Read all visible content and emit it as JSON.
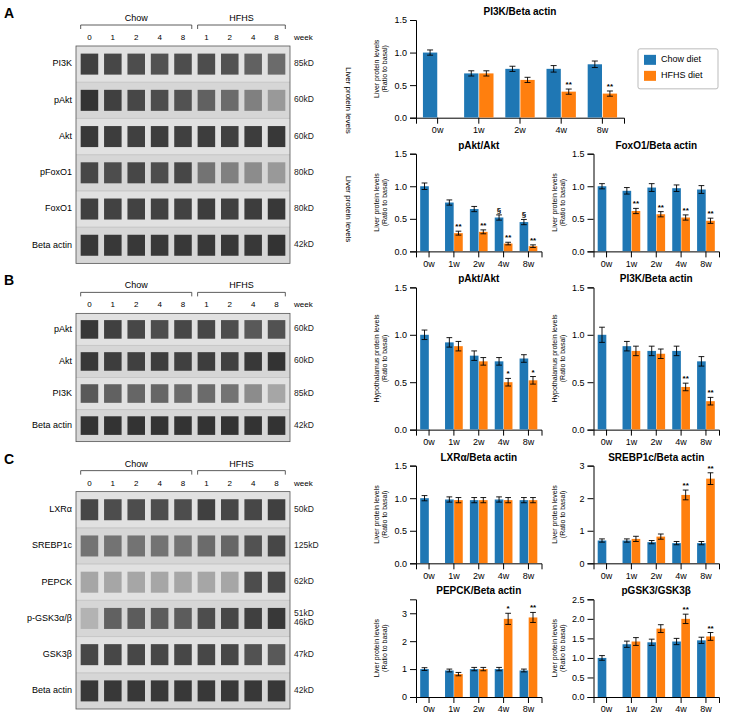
{
  "chart_data": [
    {
      "type": "heatmap",
      "title": "A",
      "categories": [
        "0",
        "1",
        "2",
        "4",
        "8",
        "1",
        "2",
        "4",
        "8"
      ],
      "xlabel": "week",
      "groups": [
        "Chow",
        "Chow",
        "Chow",
        "Chow",
        "Chow",
        "HFHS",
        "HFHS",
        "HFHS",
        "HFHS"
      ],
      "rows": [
        {
          "name": "PI3K",
          "kd": "85kD",
          "values": [
            0.25,
            0.28,
            0.3,
            0.32,
            0.3,
            0.3,
            0.32,
            0.38,
            0.42
          ]
        },
        {
          "name": "pAkt",
          "kd": "60kD",
          "values": [
            0.2,
            0.25,
            0.28,
            0.3,
            0.32,
            0.38,
            0.42,
            0.5,
            0.6
          ]
        },
        {
          "name": "Akt",
          "kd": "60kD",
          "values": [
            0.22,
            0.24,
            0.25,
            0.24,
            0.25,
            0.24,
            0.25,
            0.24,
            0.22
          ]
        },
        {
          "name": "pFoxO1",
          "kd": "80kD",
          "values": [
            0.28,
            0.3,
            0.28,
            0.3,
            0.28,
            0.45,
            0.5,
            0.55,
            0.6
          ]
        },
        {
          "name": "FoxO1",
          "kd": "80kD",
          "values": [
            0.25,
            0.26,
            0.26,
            0.26,
            0.26,
            0.24,
            0.25,
            0.24,
            0.22
          ]
        },
        {
          "name": "Beta actin",
          "kd": "42kD",
          "values": [
            0.22,
            0.22,
            0.22,
            0.22,
            0.22,
            0.22,
            0.22,
            0.22,
            0.2
          ]
        }
      ],
      "annotations": [
        "Liver protein levels",
        "Liver protein levels"
      ]
    },
    {
      "type": "bar",
      "title": "PI3K/Beta actin",
      "categories": [
        "0w",
        "1w",
        "2w",
        "4w",
        "8w"
      ],
      "ylabel": "Liver protein levels\n(Ratio to basal)",
      "ylim": [
        0,
        1.5
      ],
      "yticks": [
        {
          "value": 0,
          "label": "0.0"
        },
        0.5,
        {
          "value": 1,
          "label": "1.0"
        },
        1.5
      ],
      "legend": "right",
      "series": [
        {
          "name": "Chow diet",
          "values": [
            1.0,
            0.68,
            0.75,
            0.75,
            0.82
          ],
          "errors": [
            0.04,
            0.04,
            0.04,
            0.05,
            0.05
          ]
        },
        {
          "name": "HFHS diet",
          "values": [
            null,
            0.68,
            0.58,
            0.4,
            0.37
          ],
          "errors": [
            null,
            0.04,
            0.04,
            0.04,
            0.04
          ],
          "annotations": [
            null,
            null,
            null,
            "**",
            "**"
          ]
        }
      ]
    },
    {
      "type": "bar",
      "title": "pAkt/Akt",
      "categories": [
        "0w",
        "1w",
        "2w",
        "4w",
        "8w"
      ],
      "ylabel": "Liver protein levels\n(Ratio to basal)",
      "ylim": [
        0,
        1.5
      ],
      "yticks": [
        {
          "value": 0,
          "label": "0.0"
        },
        0.5,
        {
          "value": 1,
          "label": "1.0"
        },
        1.5
      ],
      "series": [
        {
          "values": [
            1.0,
            0.75,
            0.65,
            0.52,
            0.45
          ],
          "errors": [
            0.05,
            0.04,
            0.04,
            0.04,
            0.04
          ],
          "annotations": [
            null,
            null,
            null,
            "§",
            "§"
          ]
        },
        {
          "values": [
            null,
            0.28,
            0.3,
            0.12,
            0.08
          ],
          "errors": [
            null,
            0.03,
            0.03,
            0.02,
            0.02
          ],
          "annotations": [
            null,
            "**",
            "**",
            "**",
            "**"
          ]
        }
      ]
    },
    {
      "type": "bar",
      "title": "FoxO1/Beta actin",
      "categories": [
        "0w",
        "1w",
        "2w",
        "4w",
        "8w"
      ],
      "ylabel": "Liver protein levels\n(Ratio to basal)",
      "ylim": [
        0,
        1.5
      ],
      "yticks": [
        {
          "value": 0,
          "label": "0.0"
        },
        0.5,
        {
          "value": 1,
          "label": "1.0"
        },
        1.5
      ],
      "series": [
        {
          "values": [
            1.0,
            0.93,
            0.98,
            0.97,
            0.95
          ],
          "errors": [
            0.04,
            0.05,
            0.06,
            0.05,
            0.06
          ]
        },
        {
          "values": [
            null,
            0.62,
            0.57,
            0.52,
            0.47
          ],
          "errors": [
            null,
            0.04,
            0.04,
            0.04,
            0.04
          ],
          "annotations": [
            null,
            "**",
            "**",
            "**",
            "**"
          ]
        }
      ]
    },
    {
      "type": "heatmap",
      "title": "B",
      "categories": [
        "0",
        "1",
        "2",
        "4",
        "8",
        "1",
        "2",
        "4",
        "8"
      ],
      "xlabel": "week",
      "groups": [
        "Chow",
        "Chow",
        "Chow",
        "Chow",
        "Chow",
        "HFHS",
        "HFHS",
        "HFHS",
        "HFHS"
      ],
      "rows": [
        {
          "name": "pAkt",
          "kd": "60kD",
          "values": [
            0.22,
            0.25,
            0.28,
            0.3,
            0.28,
            0.28,
            0.3,
            0.35,
            0.32
          ]
        },
        {
          "name": "Akt",
          "kd": "60kD",
          "values": [
            0.22,
            0.24,
            0.25,
            0.24,
            0.25,
            0.24,
            0.25,
            0.22,
            0.2
          ]
        },
        {
          "name": "PI3K",
          "kd": "85kD",
          "values": [
            0.35,
            0.38,
            0.4,
            0.4,
            0.42,
            0.42,
            0.45,
            0.55,
            0.65
          ]
        },
        {
          "name": "Beta actin",
          "kd": "42kD",
          "values": [
            0.2,
            0.2,
            0.2,
            0.2,
            0.2,
            0.2,
            0.2,
            0.2,
            0.2
          ]
        }
      ]
    },
    {
      "type": "bar",
      "title": "pAkt/Akt",
      "categories": [
        "0w",
        "1w",
        "2w",
        "4w",
        "8w"
      ],
      "ylabel": "Hypothalamus protein levels\n(Ratio to basal)",
      "ylim": [
        0,
        1.5
      ],
      "yticks": [
        {
          "value": 0,
          "label": "0.0"
        },
        0.5,
        {
          "value": 1,
          "label": "1.0"
        },
        1.5
      ],
      "series": [
        {
          "values": [
            1.0,
            0.92,
            0.78,
            0.72,
            0.75
          ],
          "errors": [
            0.05,
            0.05,
            0.05,
            0.04,
            0.04
          ]
        },
        {
          "values": [
            null,
            0.88,
            0.72,
            0.5,
            0.52
          ],
          "errors": [
            null,
            0.05,
            0.04,
            0.04,
            0.04
          ],
          "annotations": [
            null,
            null,
            null,
            "*",
            "*"
          ]
        }
      ]
    },
    {
      "type": "bar",
      "title": "PI3K/Beta actin",
      "categories": [
        "0w",
        "1w",
        "2w",
        "4w",
        "8w"
      ],
      "ylabel": "Hypothalamus protein levels\n(Ratio to basal)",
      "ylim": [
        0,
        1.5
      ],
      "yticks": [
        {
          "value": 0,
          "label": "0.0"
        },
        0.5,
        {
          "value": 1,
          "label": "1.0"
        },
        1.5
      ],
      "series": [
        {
          "values": [
            1.0,
            0.88,
            0.83,
            0.83,
            0.72
          ],
          "errors": [
            0.08,
            0.05,
            0.05,
            0.05,
            0.05
          ]
        },
        {
          "values": [
            null,
            0.83,
            0.8,
            0.45,
            0.3
          ],
          "errors": [
            null,
            0.05,
            0.05,
            0.04,
            0.04
          ],
          "annotations": [
            null,
            null,
            null,
            "**",
            "**"
          ]
        }
      ]
    },
    {
      "type": "heatmap",
      "title": "C",
      "categories": [
        "0",
        "1",
        "2",
        "4",
        "8",
        "1",
        "2",
        "4",
        "8"
      ],
      "xlabel": "week",
      "groups": [
        "Chow",
        "Chow",
        "Chow",
        "Chow",
        "Chow",
        "HFHS",
        "HFHS",
        "HFHS",
        "HFHS"
      ],
      "rows": [
        {
          "name": "LXRα",
          "kd": "50kD",
          "values": [
            0.28,
            0.3,
            0.3,
            0.3,
            0.3,
            0.25,
            0.28,
            0.28,
            0.25
          ]
        },
        {
          "name": "SREBP1c",
          "kd": "125kD",
          "values": [
            0.45,
            0.45,
            0.45,
            0.45,
            0.45,
            0.42,
            0.4,
            0.32,
            0.28
          ]
        },
        {
          "name": "PEPCK",
          "kd": "62kD",
          "values": [
            0.65,
            0.65,
            0.65,
            0.65,
            0.65,
            0.65,
            0.65,
            0.3,
            0.28
          ]
        },
        {
          "name": "p-GSK3α/β",
          "kd": "51kD\n46kD",
          "values": [
            0.7,
            0.38,
            0.36,
            0.36,
            0.36,
            0.3,
            0.28,
            0.25,
            0.22
          ]
        },
        {
          "name": "GSK3β",
          "kd": "47kD",
          "values": [
            0.28,
            0.28,
            0.28,
            0.28,
            0.28,
            0.28,
            0.28,
            0.32,
            0.35
          ]
        },
        {
          "name": "Beta actin",
          "kd": "42kD",
          "values": [
            0.22,
            0.22,
            0.22,
            0.22,
            0.22,
            0.22,
            0.22,
            0.22,
            0.22
          ]
        }
      ]
    },
    {
      "type": "bar",
      "title": "LXRα/Beta actin",
      "categories": [
        "0w",
        "1w",
        "2w",
        "4w",
        "8w"
      ],
      "ylabel": "Liver protein levels\n(Ratio to basal)",
      "ylim": [
        0,
        1.5
      ],
      "yticks": [
        {
          "value": 0,
          "label": "0.0"
        },
        0.5,
        {
          "value": 1,
          "label": "1.0"
        },
        1.5
      ],
      "series": [
        {
          "values": [
            1.0,
            0.98,
            0.97,
            0.98,
            0.97
          ],
          "errors": [
            0.04,
            0.04,
            0.04,
            0.04,
            0.04
          ]
        },
        {
          "values": [
            null,
            0.97,
            0.97,
            0.97,
            0.97
          ],
          "errors": [
            null,
            0.04,
            0.04,
            0.04,
            0.04
          ]
        }
      ]
    },
    {
      "type": "bar",
      "title": "SREBP1c/Beta actin",
      "categories": [
        "0w",
        "1w",
        "2w",
        "4w",
        "8w"
      ],
      "ylabel": "Liver protein levels\n(Ratio to basal)",
      "ylim": [
        0,
        3
      ],
      "yticks": [
        0,
        1,
        2,
        3
      ],
      "series": [
        {
          "values": [
            0.7,
            0.7,
            0.65,
            0.62,
            0.62
          ],
          "errors": [
            0.05,
            0.05,
            0.05,
            0.05,
            0.05
          ]
        },
        {
          "values": [
            null,
            0.75,
            0.82,
            2.1,
            2.6
          ],
          "errors": [
            null,
            0.08,
            0.08,
            0.15,
            0.18
          ],
          "annotations": [
            null,
            null,
            null,
            "**",
            "**"
          ]
        }
      ]
    },
    {
      "type": "bar",
      "title": "PEPCK/Beta actin",
      "categories": [
        "0w",
        "1w",
        "2w",
        "4w",
        "8w"
      ],
      "ylabel": "Liver protein levels\n(Ratio to basal)",
      "ylim": [
        0,
        3.5
      ],
      "yticks": [
        0,
        1,
        2,
        3
      ],
      "series": [
        {
          "values": [
            1.0,
            0.95,
            1.0,
            1.0,
            0.95
          ],
          "errors": [
            0.05,
            0.05,
            0.06,
            0.06,
            0.05
          ]
        },
        {
          "values": [
            null,
            0.82,
            1.0,
            2.8,
            2.85
          ],
          "errors": [
            null,
            0.06,
            0.06,
            0.2,
            0.18
          ],
          "annotations": [
            null,
            null,
            null,
            "*",
            "**"
          ]
        }
      ]
    },
    {
      "type": "bar",
      "title": "pGSK3/GSK3β",
      "categories": [
        "0w",
        "1w",
        "2w",
        "4w",
        "8w"
      ],
      "ylabel": "Liver protein levels\n(Ratio to basal)",
      "ylim": [
        0,
        2.5
      ],
      "yticks": [
        {
          "value": 0,
          "label": "0.0"
        },
        0.5,
        {
          "value": 1,
          "label": "1.0"
        },
        1.5,
        {
          "value": 2,
          "label": "2.0"
        },
        2.5
      ],
      "series": [
        {
          "values": [
            1.0,
            1.35,
            1.4,
            1.42,
            1.45
          ],
          "errors": [
            0.06,
            0.08,
            0.08,
            0.08,
            0.08
          ]
        },
        {
          "values": [
            null,
            1.42,
            1.75,
            2.0,
            1.55
          ],
          "errors": [
            null,
            0.1,
            0.1,
            0.12,
            0.1
          ],
          "annotations": [
            null,
            null,
            null,
            "**",
            "**"
          ]
        }
      ]
    }
  ]
}
